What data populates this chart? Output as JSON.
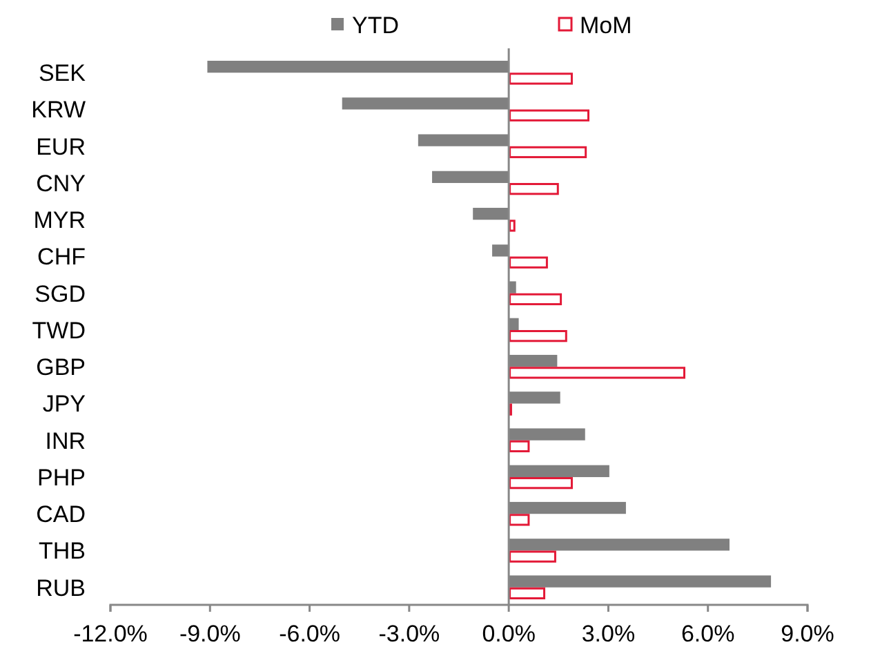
{
  "chart_data": {
    "type": "bar",
    "orientation": "horizontal",
    "categories": [
      "SEK",
      "KRW",
      "EUR",
      "CNY",
      "MYR",
      "CHF",
      "SGD",
      "TWD",
      "GBP",
      "JPY",
      "INR",
      "PHP",
      "CAD",
      "THB",
      "RUB"
    ],
    "series": [
      {
        "name": "YTD",
        "color": "#808080",
        "values": [
          -9.08,
          -5.02,
          -2.73,
          -2.31,
          -1.08,
          -0.5,
          0.22,
          0.3,
          1.46,
          1.55,
          2.3,
          3.03,
          3.53,
          6.65,
          7.9
        ]
      },
      {
        "name": "MoM",
        "color": "#e31937",
        "values": [
          1.93,
          2.43,
          2.35,
          1.51,
          0.2,
          1.18,
          1.6,
          1.76,
          5.32,
          0.1,
          0.63,
          1.93,
          0.63,
          1.43,
          1.1
        ]
      }
    ],
    "xlim": [
      -12,
      9
    ],
    "xticks": [
      {
        "value": -12,
        "label": "-12.0%"
      },
      {
        "value": -9,
        "label": "-9.0%"
      },
      {
        "value": -6,
        "label": "-6.0%"
      },
      {
        "value": -3,
        "label": "-3.0%"
      },
      {
        "value": 0,
        "label": "0.0%"
      },
      {
        "value": 3,
        "label": "3.0%"
      },
      {
        "value": 6,
        "label": "6.0%"
      },
      {
        "value": 9,
        "label": "9.0%"
      }
    ],
    "legend": "top"
  }
}
